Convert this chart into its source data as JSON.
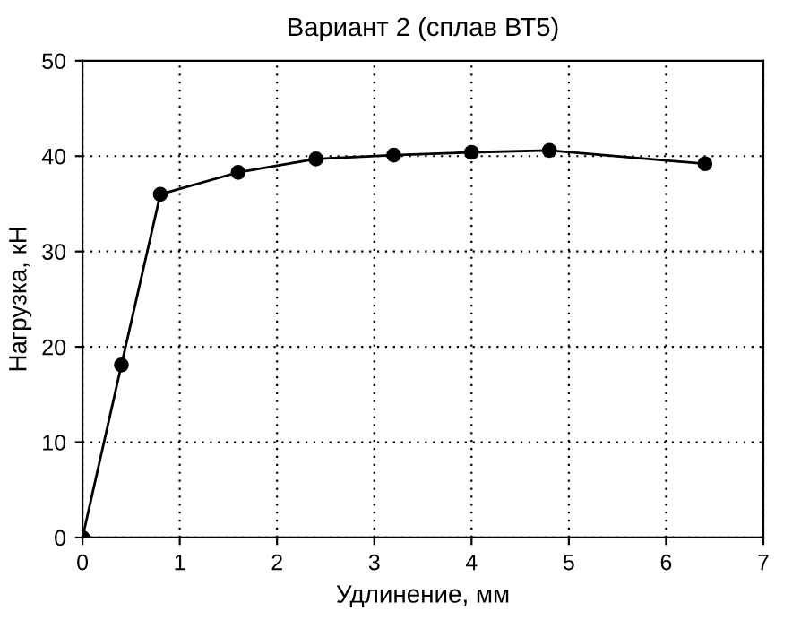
{
  "chart_data": {
    "type": "line",
    "title": "Вариант 2 (сплав ВТ5)",
    "xlabel": "Удлинение, мм",
    "ylabel": "Нагрузка, кН",
    "x": [
      0,
      0.4,
      0.8,
      1.6,
      2.4,
      3.2,
      4,
      4.8,
      6.4
    ],
    "series": [
      {
        "color": "#000000",
        "values": [
          0,
          18.1,
          36,
          38.3,
          39.7,
          40.1,
          40.4,
          40.6,
          39.2
        ]
      }
    ],
    "xlim": [
      0,
      7
    ],
    "ylim": [
      0,
      50
    ],
    "xticks": [
      0,
      1,
      2,
      3,
      4,
      5,
      6,
      7
    ],
    "yticks": [
      0,
      10,
      20,
      30,
      40,
      50
    ],
    "grid": true,
    "marker": "circle",
    "line_style": "solid",
    "legend": false
  }
}
